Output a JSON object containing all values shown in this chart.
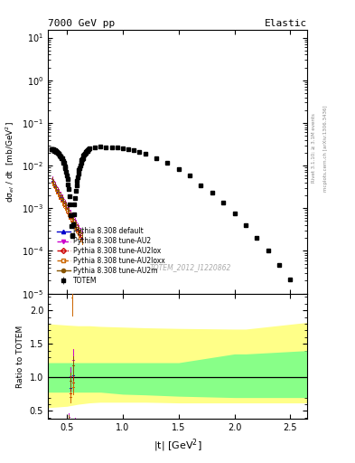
{
  "title_left": "7000 GeV pp",
  "title_right": "Elastic",
  "ylabel_main": "dσ$_{el}$ / dt  [mb/GeV$^{2}$]",
  "ylabel_ratio": "Ratio to TOTEM",
  "xlabel": "|t| [GeV$^{2}$]",
  "right_label": "Rivet 3.1.10; ≥ 3.1M events",
  "right_label2": "mcplots.cern.ch [arXiv:1306.3436]",
  "watermark": "TOTEM_2012_I1220862",
  "xlim": [
    0.33,
    2.65
  ],
  "ylim_main": [
    1e-05,
    15
  ],
  "ylim_ratio": [
    0.38,
    2.25
  ],
  "ratio_yticks": [
    0.5,
    1.0,
    1.5,
    2.0
  ],
  "totem_color": "#000000",
  "pythia_default_color": "#0000cc",
  "pythia_AU2_color": "#cc00cc",
  "pythia_AU2lox_color": "#cc0000",
  "pythia_AU2loxx_color": "#cc6600",
  "pythia_AU2m_color": "#885500",
  "band_yellow": "#ffff88",
  "band_green": "#88ff88",
  "legend_labels": [
    "TOTEM",
    "Pythia 8.308 default",
    "Pythia 8.308 tune-AU2",
    "Pythia 8.308 tune-AU2lox",
    "Pythia 8.308 tune-AU2loxx",
    "Pythia 8.308 tune-AU2m"
  ]
}
